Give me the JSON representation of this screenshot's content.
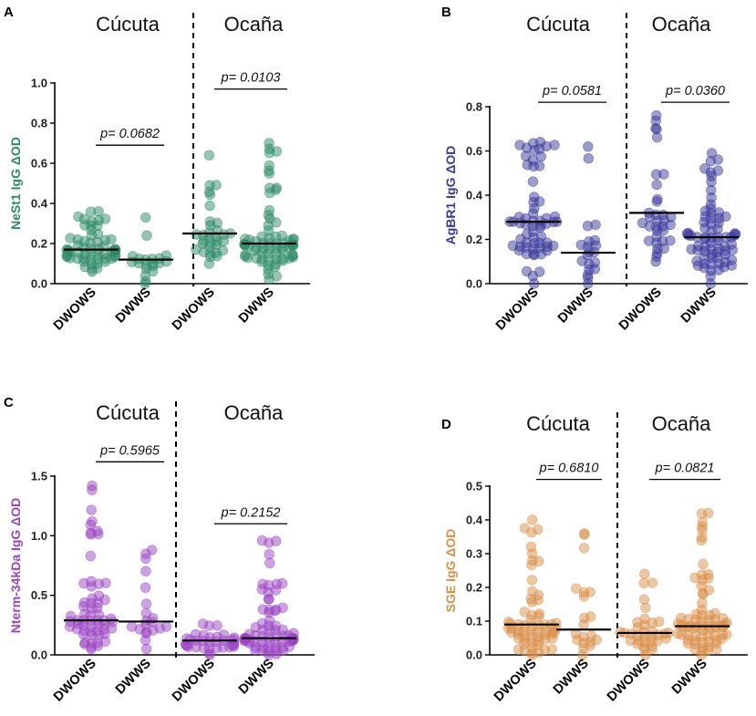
{
  "chart_data": [
    {
      "panel": "A",
      "type": "scatter",
      "ylabel": "NeSt1 IgG ΔOD",
      "color": "#2e8b67",
      "ylim": [
        0,
        1.0
      ],
      "yticks": [
        "0.0",
        "0.2",
        "0.4",
        "0.6",
        "0.8",
        "1.0"
      ],
      "ytick_values": [
        0,
        0.2,
        0.4,
        0.6,
        0.8,
        1.0
      ],
      "sites": [
        "Cúcuta",
        "Ocaña"
      ],
      "categories": [
        "DWOWS",
        "DWWS",
        "DWOWS",
        "DWWS"
      ],
      "groups": [
        {
          "site": "Cúcuta",
          "label": "DWOWS",
          "median": 0.17,
          "n": 60,
          "min": 0.06,
          "max": 0.36
        },
        {
          "site": "Cúcuta",
          "label": "DWWS",
          "median": 0.12,
          "n": 20,
          "min": 0.0,
          "max": 0.33
        },
        {
          "site": "Ocaña",
          "label": "DWOWS",
          "median": 0.25,
          "n": 32,
          "min": 0.1,
          "max": 0.64
        },
        {
          "site": "Ocaña",
          "label": "DWWS",
          "median": 0.2,
          "n": 72,
          "min": 0.02,
          "max": 0.7
        }
      ],
      "comparisons": [
        {
          "site": "Cúcuta",
          "p": "p= 0.0682",
          "level": 0.69
        },
        {
          "site": "Ocaña",
          "p": "p= 0.0103",
          "level": 0.97
        }
      ]
    },
    {
      "panel": "B",
      "type": "scatter",
      "ylabel": "AgBR1 IgG ΔOD",
      "color": "#3a3a9c",
      "ylim": [
        0,
        0.8
      ],
      "yticks": [
        "0.0",
        "0.2",
        "0.4",
        "0.6",
        "0.8"
      ],
      "ytick_values": [
        0,
        0.2,
        0.4,
        0.6,
        0.8
      ],
      "sites": [
        "Cúcuta",
        "Ocaña"
      ],
      "categories": [
        "DWOWS",
        "DWWS",
        "DWOWS",
        "DWWS"
      ],
      "groups": [
        {
          "site": "Cúcuta",
          "label": "DWOWS",
          "median": 0.28,
          "n": 62,
          "min": 0.0,
          "max": 0.64
        },
        {
          "site": "Cúcuta",
          "label": "DWWS",
          "median": 0.14,
          "n": 20,
          "min": 0.0,
          "max": 0.62
        },
        {
          "site": "Ocaña",
          "label": "DWOWS",
          "median": 0.32,
          "n": 34,
          "min": 0.1,
          "max": 0.76
        },
        {
          "site": "Ocaña",
          "label": "DWWS",
          "median": 0.21,
          "n": 72,
          "min": 0.0,
          "max": 0.59
        }
      ],
      "comparisons": [
        {
          "site": "Cúcuta",
          "p": "p= 0.0581",
          "level": 0.82
        },
        {
          "site": "Ocaña",
          "p": "p= 0.0360",
          "level": 0.82
        }
      ]
    },
    {
      "panel": "C",
      "type": "scatter",
      "ylabel": "Nterm-34kDa IgG ΔOD",
      "color": "#9b45c4",
      "ylim": [
        0,
        1.5
      ],
      "yticks": [
        "0.0",
        "0.5",
        "1.0",
        "1.5"
      ],
      "ytick_values": [
        0,
        0.5,
        1.0,
        1.5
      ],
      "sites": [
        "Cúcuta",
        "Ocaña"
      ],
      "categories": [
        "DWOWS",
        "DWWS",
        "DWOWS",
        "DWWS"
      ],
      "groups": [
        {
          "site": "Cúcuta",
          "label": "DWOWS",
          "median": 0.29,
          "n": 60,
          "min": 0.05,
          "max": 1.42
        },
        {
          "site": "Cúcuta",
          "label": "DWWS",
          "median": 0.28,
          "n": 20,
          "min": 0.05,
          "max": 0.88
        },
        {
          "site": "Ocaña",
          "label": "DWOWS",
          "median": 0.12,
          "n": 34,
          "min": 0.0,
          "max": 0.26
        },
        {
          "site": "Ocaña",
          "label": "DWWS",
          "median": 0.14,
          "n": 72,
          "min": 0.0,
          "max": 0.96
        }
      ],
      "comparisons": [
        {
          "site": "Cúcuta",
          "p": "p= 0.5965",
          "level": 1.62
        },
        {
          "site": "Ocaña",
          "p": "p= 0.2152",
          "level": 1.1
        }
      ]
    },
    {
      "panel": "D",
      "type": "scatter",
      "ylabel": "SGE IgG ΔOD",
      "color": "#d9904a",
      "ylim": [
        0,
        0.5
      ],
      "yticks": [
        "0.0",
        "0.1",
        "0.2",
        "0.3",
        "0.4",
        "0.5"
      ],
      "ytick_values": [
        0,
        0.1,
        0.2,
        0.3,
        0.4,
        0.5
      ],
      "sites": [
        "Cúcuta",
        "Ocaña"
      ],
      "categories": [
        "DWOWS",
        "DWWS",
        "DWOWS",
        "DWWS"
      ],
      "groups": [
        {
          "site": "Cúcuta",
          "label": "DWOWS",
          "median": 0.09,
          "n": 62,
          "min": 0.0,
          "max": 0.4
        },
        {
          "site": "Cúcuta",
          "label": "DWWS",
          "median": 0.075,
          "n": 20,
          "min": 0.0,
          "max": 0.36
        },
        {
          "site": "Ocaña",
          "label": "DWOWS",
          "median": 0.065,
          "n": 34,
          "min": 0.0,
          "max": 0.24
        },
        {
          "site": "Ocaña",
          "label": "DWWS",
          "median": 0.085,
          "n": 72,
          "min": 0.0,
          "max": 0.42
        }
      ],
      "comparisons": [
        {
          "site": "Cúcuta",
          "p": "p= 0.6810",
          "level": 0.52
        },
        {
          "site": "Ocaña",
          "p": "p= 0.0821",
          "level": 0.52
        }
      ]
    }
  ]
}
